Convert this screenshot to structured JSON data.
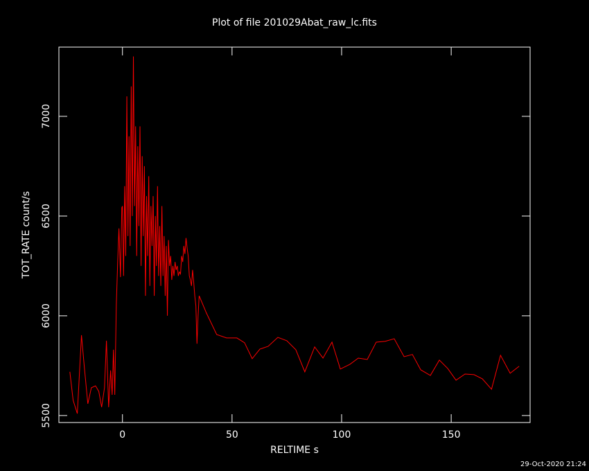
{
  "chart_data": {
    "type": "line",
    "title": "Plot of file 201029Abat_raw_lc.fits",
    "x_label": "RELTIME  s",
    "y_label": "TOT_RATE  count/s",
    "timestamp": "29-Oct-2020 21:24",
    "xlim": [
      -29,
      186
    ],
    "ylim": [
      5465,
      7347
    ],
    "xticks": [
      0,
      50,
      100,
      150
    ],
    "yticks": [
      5500,
      6000,
      6500,
      7000
    ],
    "series": [
      {
        "name": "TOT_RATE",
        "color": "#ff0000",
        "x": [
          -24,
          -22.5,
          -20.6,
          -18.7,
          -17.4,
          -15.8,
          -14.2,
          -12.3,
          -10.8,
          -9.5,
          -8.2,
          -7.3,
          -6.3,
          -5.4,
          -4.7,
          -4.1,
          -3.5,
          -2.8,
          -2.2,
          -1.6,
          -0.9,
          -0.3,
          0,
          0.5,
          1,
          1.5,
          2,
          2.5,
          3,
          3.5,
          4,
          4.5,
          5,
          5.5,
          6,
          6.5,
          7,
          7.5,
          8,
          8.5,
          9,
          9.5,
          10,
          10.5,
          11,
          11.5,
          12,
          12.5,
          13,
          13.5,
          14,
          14.5,
          15,
          15.5,
          16,
          16.5,
          17,
          17.5,
          18,
          18.5,
          19,
          19.5,
          20,
          20.5,
          21,
          21.5,
          22,
          22.5,
          23,
          23.5,
          24,
          24.5,
          25,
          25.5,
          26,
          26.5,
          27,
          27.5,
          28,
          28.5,
          29,
          29.5,
          30,
          30.5,
          31,
          31.5,
          32,
          32.5,
          33,
          33.5,
          34,
          34.5,
          35,
          38.3,
          43,
          47.5,
          52.2,
          55.7,
          59.2,
          62.7,
          66.5,
          70.9,
          75,
          79.1,
          83.2,
          87.7,
          91.5,
          95.6,
          99.4,
          103.8,
          107.6,
          111.7,
          115.8,
          119.9,
          124,
          128.5,
          132.3,
          136.1,
          140.5,
          144.6,
          148.4,
          152.2,
          156.3,
          160.4,
          164.2,
          168.4,
          172.5,
          176.9,
          181
        ],
        "values": [
          5719,
          5576,
          5510,
          5903,
          5743,
          5559,
          5639,
          5649,
          5621,
          5542,
          5639,
          5875,
          5542,
          5726,
          5604,
          5830,
          5604,
          6056,
          6264,
          6438,
          6194,
          6542,
          6550,
          6200,
          6650,
          6300,
          7100,
          6400,
          6900,
          6350,
          7150,
          6500,
          7300,
          6550,
          6950,
          6300,
          6850,
          6450,
          6950,
          6250,
          6800,
          6400,
          6750,
          6100,
          6600,
          6300,
          6700,
          6150,
          6550,
          6350,
          6600,
          6100,
          6500,
          6250,
          6650,
          6200,
          6450,
          6150,
          6550,
          6200,
          6400,
          6100,
          6350,
          6000,
          6380,
          6250,
          6300,
          6180,
          6250,
          6200,
          6270,
          6230,
          6250,
          6200,
          6220,
          6210,
          6300,
          6270,
          6350,
          6310,
          6390,
          6340,
          6300,
          6200,
          6180,
          6150,
          6230,
          6170,
          6100,
          6050,
          5860,
          6000,
          6100,
          6014,
          5906,
          5889,
          5889,
          5865,
          5785,
          5833,
          5847,
          5892,
          5875,
          5830,
          5719,
          5844,
          5788,
          5868,
          5733,
          5757,
          5788,
          5781,
          5868,
          5872,
          5885,
          5795,
          5806,
          5729,
          5701,
          5778,
          5736,
          5677,
          5708,
          5705,
          5684,
          5632,
          5802,
          5712,
          5747
        ]
      }
    ]
  }
}
